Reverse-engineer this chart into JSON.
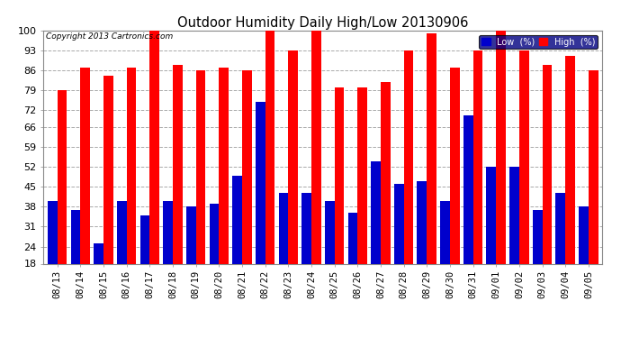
{
  "title": "Outdoor Humidity Daily High/Low 20130906",
  "copyright": "Copyright 2013 Cartronics.com",
  "dates": [
    "08/13",
    "08/14",
    "08/15",
    "08/16",
    "08/17",
    "08/18",
    "08/19",
    "08/20",
    "08/21",
    "08/22",
    "08/23",
    "08/24",
    "08/25",
    "08/26",
    "08/27",
    "08/28",
    "08/29",
    "08/30",
    "08/31",
    "09/01",
    "09/02",
    "09/03",
    "09/04",
    "09/05"
  ],
  "high": [
    79,
    87,
    84,
    87,
    100,
    88,
    86,
    87,
    86,
    100,
    93,
    100,
    80,
    80,
    82,
    93,
    99,
    87,
    93,
    100,
    93,
    88,
    91,
    86
  ],
  "low": [
    40,
    37,
    25,
    40,
    35,
    40,
    38,
    39,
    49,
    75,
    43,
    43,
    40,
    36,
    54,
    46,
    47,
    40,
    70,
    52,
    52,
    37,
    43,
    38
  ],
  "high_color": "#ff0000",
  "low_color": "#0000cc",
  "bg_color": "#ffffff",
  "grid_color": "#aaaaaa",
  "ylim_min": 18,
  "ylim_max": 100,
  "yticks": [
    18,
    24,
    31,
    38,
    45,
    52,
    59,
    66,
    72,
    79,
    86,
    93,
    100
  ],
  "bar_width": 0.42,
  "bar_bottom": 18
}
